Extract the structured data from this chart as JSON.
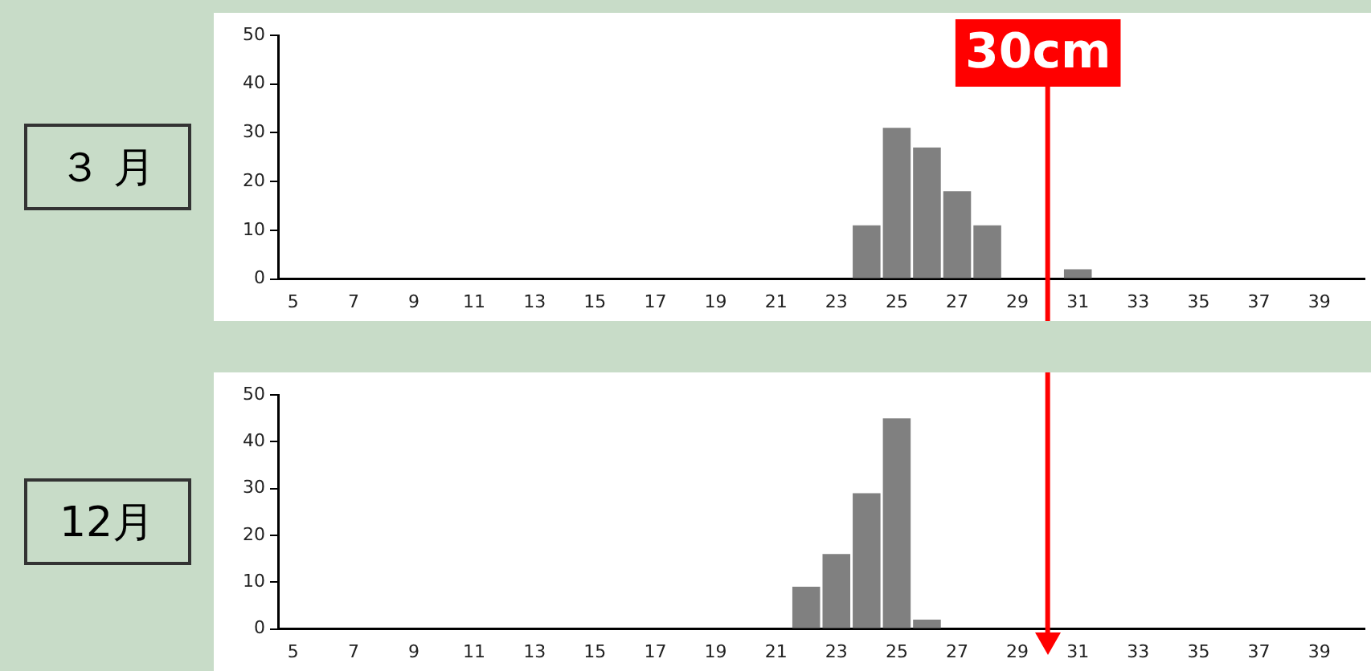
{
  "chart_data": [
    {
      "type": "histogram",
      "title": "３ 月",
      "bins": [
        21.5,
        22.5,
        23.5,
        24.5,
        25.5,
        26.5,
        27.5,
        28.5,
        29.5,
        30.5,
        31.5
      ],
      "values": [
        0,
        null,
        11,
        31,
        27,
        18,
        11,
        0,
        null,
        2
      ],
      "color": "#808080",
      "xlim": [
        4.5,
        40.5
      ],
      "xticks": [
        5,
        7,
        9,
        11,
        13,
        15,
        17,
        19,
        21,
        23,
        25,
        27,
        29,
        31,
        33,
        35,
        37,
        39
      ],
      "ylim": [
        0,
        50
      ],
      "yticks": [
        0,
        10,
        20,
        30,
        40,
        50
      ],
      "grid": false,
      "legend": false,
      "ref_lines": [
        {
          "axis": "x",
          "value": 30,
          "label": "30cm",
          "color": "#ff0000"
        }
      ]
    },
    {
      "type": "histogram",
      "title": "12月",
      "bins": [
        21.5,
        22.5,
        23.5,
        24.5,
        25.5,
        26.5
      ],
      "values": [
        9,
        16,
        29,
        45,
        2
      ],
      "color": "#808080",
      "xlim": [
        4.5,
        40.5
      ],
      "xticks": [
        5,
        7,
        9,
        11,
        13,
        15,
        17,
        19,
        21,
        23,
        25,
        27,
        29,
        31,
        33,
        35,
        37,
        39
      ],
      "ylim": [
        0,
        50
      ],
      "yticks": [
        0,
        10,
        20,
        30,
        40,
        50
      ],
      "grid": false,
      "legend": false,
      "ref_lines": [
        {
          "axis": "x",
          "value": 30,
          "color": "#ff0000"
        }
      ]
    }
  ]
}
